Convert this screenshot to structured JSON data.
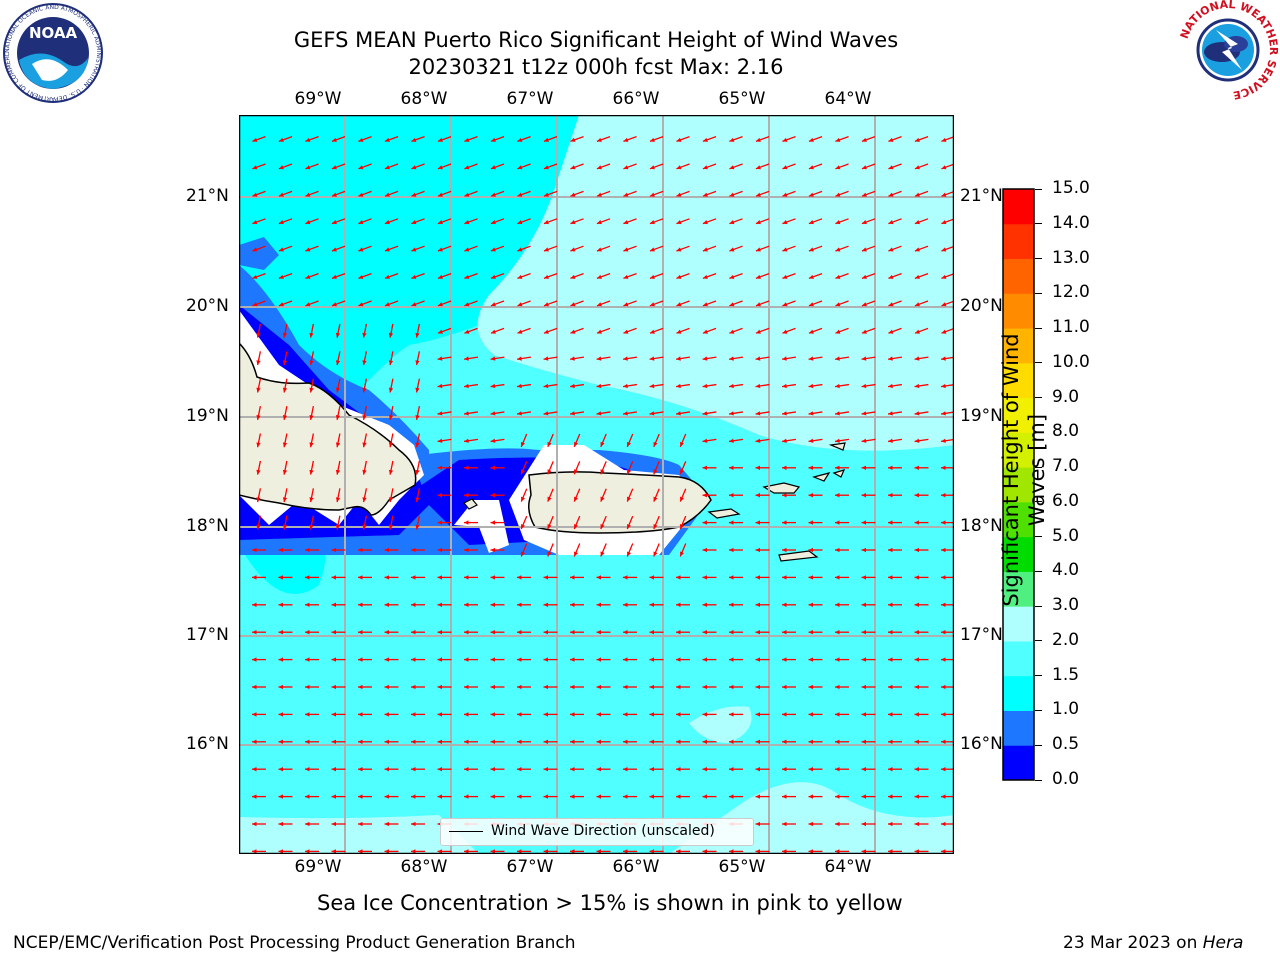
{
  "title": {
    "line1": "GEFS MEAN Puerto Rico Significant Height of Wind Waves",
    "line2": "20230321 t12z 000h fcst   Max: 2.16"
  },
  "map": {
    "lon_labels": [
      "69°W",
      "68°W",
      "67°W",
      "66°W",
      "65°W",
      "64°W"
    ],
    "lat_labels": [
      "21°N",
      "20°N",
      "19°N",
      "18°N",
      "17°N",
      "16°N"
    ],
    "legend_label": "Wind Wave Direction (unscaled)",
    "arrow_color": "#ff0000",
    "land_color": "#efefe0",
    "grid_color": "#b0b0b0"
  },
  "colorbar": {
    "label": "Significant Height of Wind Waves [m]",
    "ticks": [
      "0.0",
      "0.5",
      "1.0",
      "1.5",
      "2.0",
      "3.0",
      "4.0",
      "5.0",
      "6.0",
      "7.0",
      "8.0",
      "9.0",
      "10.0",
      "11.0",
      "12.0",
      "13.0",
      "14.0",
      "15.0"
    ],
    "colors": [
      "#0000ff",
      "#1e78ff",
      "#00ffff",
      "#50ffff",
      "#b0ffff",
      "#50f080",
      "#00dc00",
      "#50e000",
      "#a0e600",
      "#d2f000",
      "#f0f000",
      "#ffdc00",
      "#ffb400",
      "#ff8c00",
      "#ff6400",
      "#ff3200",
      "#ff0000"
    ]
  },
  "caption": "Sea Ice Concentration > 15% is shown in pink to yellow",
  "footer": {
    "left": "NCEP/EMC/Verification Post Processing Product Generation Branch",
    "right_prefix": "23 Mar 2023 on ",
    "right_host": "Hera"
  },
  "logos": {
    "noaa_text": "NOAA",
    "noaa_ring": "NATIONAL OCEANIC AND ATMOSPHERIC ADMINISTRATION · U.S. DEPARTMENT OF COMMERCE",
    "nws_ring": "NATIONAL WEATHER SERVICE"
  }
}
